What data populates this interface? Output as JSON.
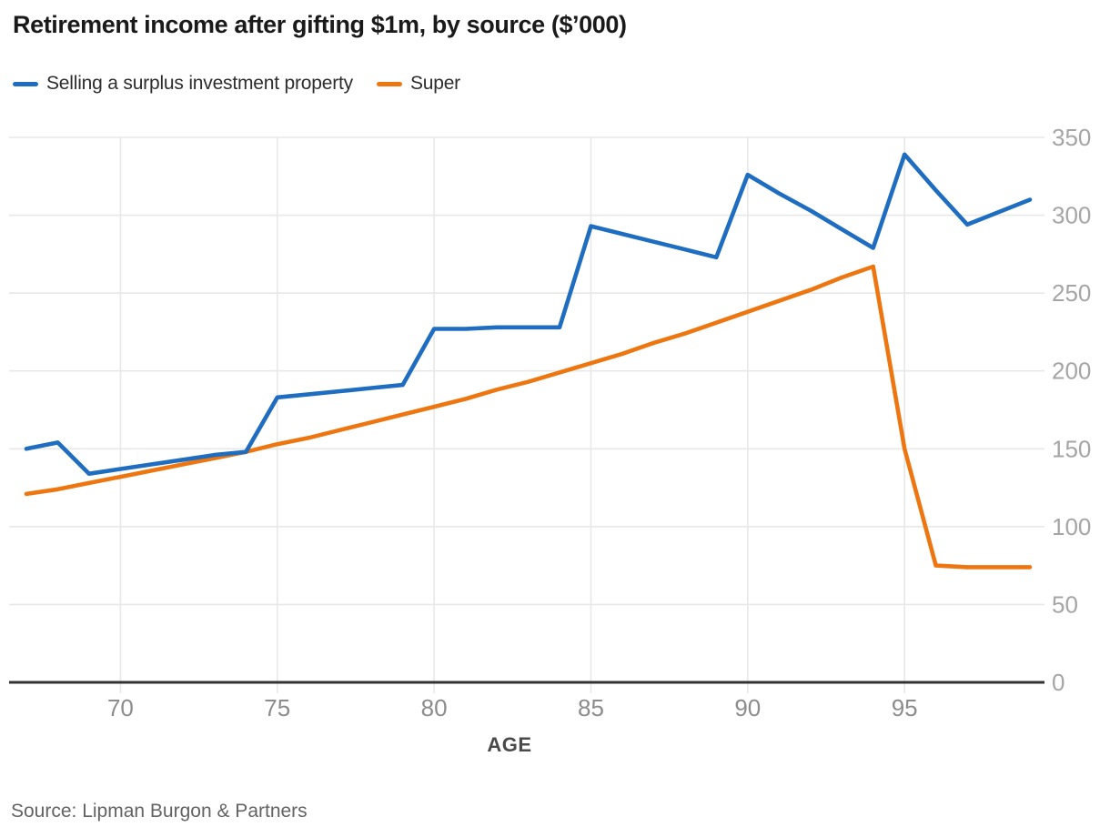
{
  "title": "Retirement income after gifting $1m, by source ($’000)",
  "source": "Source: Lipman Burgon & Partners",
  "chart_data": {
    "type": "line",
    "title": "Retirement income after gifting $1m, by source ($’000)",
    "xlabel": "AGE",
    "ylabel": "",
    "x": [
      67,
      68,
      69,
      70,
      71,
      72,
      73,
      74,
      75,
      76,
      77,
      78,
      79,
      80,
      81,
      82,
      83,
      84,
      85,
      86,
      87,
      88,
      89,
      90,
      91,
      92,
      93,
      94,
      95,
      96,
      97,
      98,
      99
    ],
    "series": [
      {
        "name": "Selling a surplus investment property",
        "color": "#1f6dc1",
        "values": [
          150,
          154,
          134,
          137,
          140,
          143,
          146,
          148,
          183,
          185,
          187,
          189,
          191,
          227,
          227,
          228,
          228,
          228,
          293,
          288,
          283,
          278,
          273,
          326,
          314,
          303,
          291,
          279,
          339,
          316,
          294,
          302,
          310
        ]
      },
      {
        "name": "Super",
        "color": "#ee7611",
        "values": [
          121,
          124,
          128,
          132,
          136,
          140,
          144,
          148,
          153,
          157,
          162,
          167,
          172,
          177,
          182,
          188,
          193,
          199,
          205,
          211,
          218,
          224,
          231,
          238,
          245,
          252,
          260,
          267,
          150,
          75,
          74,
          74,
          74
        ]
      }
    ],
    "x_ticks": [
      70,
      75,
      80,
      85,
      90,
      95
    ],
    "y_ticks": [
      0,
      50,
      100,
      150,
      200,
      250,
      300,
      350
    ],
    "xlim": [
      66.5,
      99.5
    ],
    "ylim": [
      0,
      350
    ],
    "grid": true,
    "legend_position": "top-left",
    "grid_color": "#e8e8e8",
    "axis_color": "#333333",
    "y_tick_label_color": "#a5a5a5",
    "x_tick_label_color": "#8c8c8c"
  }
}
